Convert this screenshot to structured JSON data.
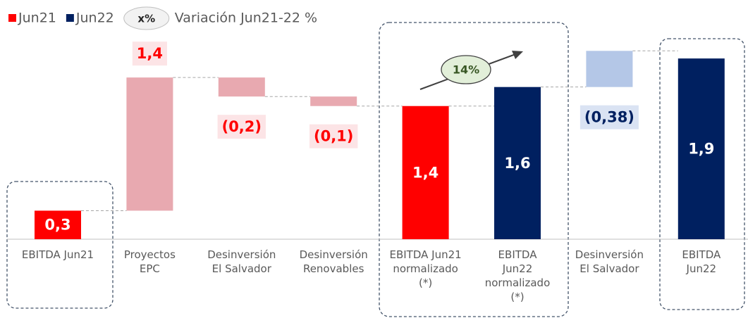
{
  "chart_data": {
    "type": "waterfall",
    "legend": [
      {
        "name": "Jun21",
        "color": "#ff0000"
      },
      {
        "name": "Jun22",
        "color": "#002060"
      }
    ],
    "legend_badge": "x%",
    "legend_note": "Variación Jun21-22 %",
    "annotation": "14%",
    "categories": [
      [
        "EBITDA Jun21"
      ],
      [
        "Proyectos",
        "EPC"
      ],
      [
        "Desinversión",
        "El Salvador"
      ],
      [
        "Desinversión",
        "Renovables"
      ],
      [
        "EBITDA Jun21",
        "normalizado",
        "(*)"
      ],
      [
        "EBITDA",
        "Jun22",
        "normalizado",
        "(*)"
      ],
      [
        "Desinversión",
        "El Salvador"
      ],
      [
        "EBITDA",
        "Jun22"
      ]
    ],
    "values": [
      0.3,
      1.4,
      -0.2,
      -0.1,
      1.4,
      1.6,
      -0.38,
      1.9
    ],
    "value_labels": [
      "0,3",
      "1,4",
      "(0,2)",
      "(0,1)",
      "1,4",
      "1,6",
      "(0,38)",
      "1,9"
    ],
    "kinds": [
      "total",
      "delta",
      "delta",
      "delta",
      "total",
      "total",
      "delta",
      "total"
    ],
    "colors": [
      "#ff0000",
      "#e8a9b0",
      "#e8a9b0",
      "#e8a9b0",
      "#ff0000",
      "#002060",
      "#b4c7e7",
      "#002060"
    ],
    "ylim": [
      0,
      2.5
    ]
  }
}
